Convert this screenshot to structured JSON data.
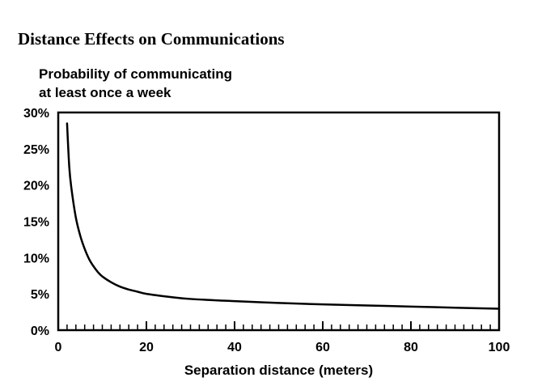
{
  "chart_data": {
    "type": "line",
    "title": "Distance Effects on Communications",
    "ylabel": [
      "Probability of communicating",
      "at least once a week"
    ],
    "xlabel": "Separation distance (meters)",
    "xlim": [
      0,
      100
    ],
    "ylim": [
      0,
      30
    ],
    "x_ticks": [
      0,
      20,
      40,
      60,
      80,
      100
    ],
    "x_tick_labels": [
      "0",
      "20",
      "40",
      "60",
      "80",
      "100"
    ],
    "x_minor_step": 2,
    "y_ticks": [
      0,
      5,
      10,
      15,
      20,
      25,
      30
    ],
    "y_tick_labels": [
      "0%",
      "5%",
      "10%",
      "15%",
      "20%",
      "25%",
      "30%"
    ],
    "grid": false,
    "series": [
      {
        "x": [
          2,
          2.5,
          3,
          4,
          5,
          6,
          7,
          8,
          9,
          10,
          12,
          14,
          16,
          18,
          20,
          25,
          30,
          40,
          50,
          60,
          70,
          80,
          90,
          100
        ],
        "y": [
          28.5,
          22.5,
          19.5,
          15.5,
          13.0,
          11.2,
          9.8,
          8.8,
          8.0,
          7.4,
          6.6,
          6.0,
          5.6,
          5.3,
          5.0,
          4.6,
          4.3,
          4.0,
          3.75,
          3.55,
          3.4,
          3.25,
          3.1,
          2.95
        ]
      }
    ]
  }
}
